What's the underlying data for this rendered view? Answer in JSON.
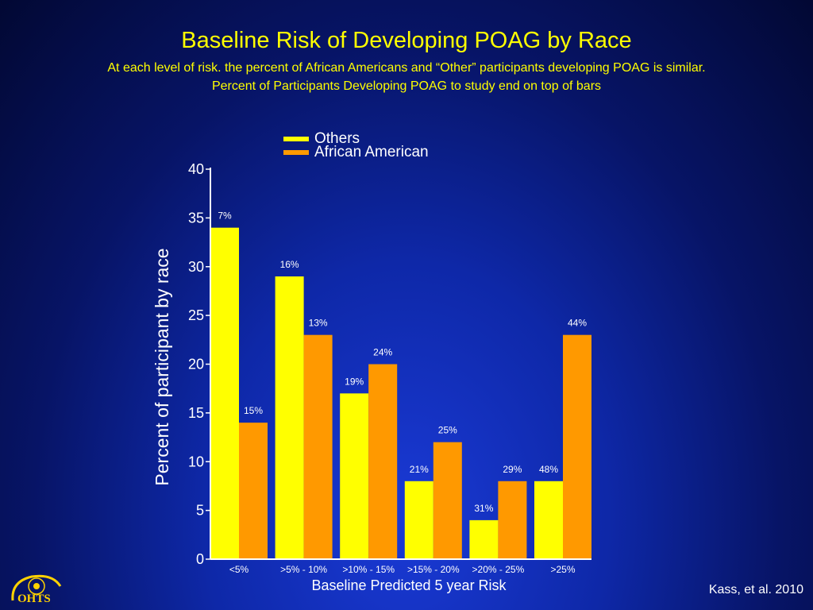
{
  "header": {
    "title": "Baseline Risk of Developing POAG by Race",
    "subtitle_line1": "At each level of risk. the percent of African Americans and “Other” participants developing POAG is similar.",
    "subtitle_line2": "Percent of Participants Developing POAG to study end on top of bars"
  },
  "footer": {
    "citation": "Kass, et al. 2010",
    "logo_text": "OHTS"
  },
  "colors": {
    "others": "#ffff00",
    "african_american": "#ff9900",
    "axis": "#ffffff",
    "text": "#ffffff",
    "title": "#ffff00"
  },
  "chart_data": {
    "type": "bar",
    "title": "",
    "xlabel": "Baseline Predicted 5 year Risk",
    "ylabel": "Percent of participant by race",
    "ylim": [
      0,
      40
    ],
    "yticks": [
      0,
      5,
      10,
      15,
      20,
      25,
      30,
      35,
      40
    ],
    "grid": false,
    "legend_position": "top-center",
    "categories": [
      "<5%",
      ">5% - 10%",
      ">10% - 15%",
      ">15% - 20%",
      ">20% - 25%",
      ">25%"
    ],
    "series": [
      {
        "name": "Others",
        "values": [
          34,
          29,
          17,
          8,
          4,
          8
        ],
        "labels": [
          "7%",
          "16%",
          "19%",
          "21%",
          "31%",
          "48%"
        ]
      },
      {
        "name": "African American",
        "values": [
          14,
          23,
          20,
          12,
          8,
          23
        ],
        "labels": [
          "15%",
          "13%",
          "24%",
          "25%",
          "29%",
          "44%"
        ]
      }
    ]
  }
}
